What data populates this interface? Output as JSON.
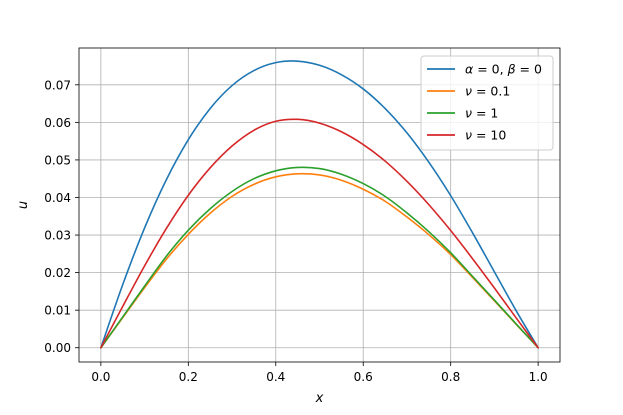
{
  "chart_data": {
    "type": "line",
    "title": "",
    "xlabel": "x",
    "ylabel": "u",
    "xlim": [
      -0.05,
      1.05
    ],
    "ylim": [
      -0.0038,
      0.0798
    ],
    "xticks": [
      0.0,
      0.2,
      0.4,
      0.6,
      0.8,
      1.0
    ],
    "xtick_labels": [
      "0.0",
      "0.2",
      "0.4",
      "0.6",
      "0.8",
      "1.0"
    ],
    "yticks": [
      0.0,
      0.01,
      0.02,
      0.03,
      0.04,
      0.05,
      0.06,
      0.07
    ],
    "ytick_labels": [
      "0.00",
      "0.01",
      "0.02",
      "0.03",
      "0.04",
      "0.05",
      "0.06",
      "0.07"
    ],
    "grid": true,
    "legend_position": "top-right",
    "x": [
      0.0,
      0.05,
      0.1,
      0.15,
      0.2,
      0.25,
      0.3,
      0.35,
      0.4,
      0.45,
      0.5,
      0.55,
      0.6,
      0.65,
      0.7,
      0.75,
      0.8,
      0.85,
      0.9,
      0.95,
      1.0
    ],
    "series": [
      {
        "name": "α = 0, β = 0",
        "legend_parts": [
          {
            "t": "α",
            "i": true
          },
          {
            "t": " = 0, ",
            "i": false
          },
          {
            "t": "β",
            "i": true
          },
          {
            "t": " = 0",
            "i": false
          }
        ],
        "color": "#1f77b4",
        "values": [
          0.0,
          0.0168,
          0.0319,
          0.0448,
          0.0554,
          0.0637,
          0.0698,
          0.0738,
          0.0759,
          0.0763,
          0.0752,
          0.0727,
          0.0689,
          0.0637,
          0.0572,
          0.0494,
          0.0405,
          0.0306,
          0.0202,
          0.0098,
          0.0
        ]
      },
      {
        "name": "ν = 0.1",
        "legend_parts": [
          {
            "t": "ν",
            "i": true
          },
          {
            "t": " = 0.1",
            "i": false
          }
        ],
        "color": "#ff7f0e",
        "values": [
          0.0,
          0.008,
          0.016,
          0.0236,
          0.0302,
          0.0358,
          0.0403,
          0.0435,
          0.0455,
          0.0463,
          0.046,
          0.0446,
          0.0422,
          0.039,
          0.0348,
          0.0301,
          0.0248,
          0.0187,
          0.0125,
          0.0062,
          0.0
        ]
      },
      {
        "name": "ν = 1",
        "legend_parts": [
          {
            "t": "ν",
            "i": true
          },
          {
            "t": " = 1",
            "i": false
          }
        ],
        "color": "#2ca02c",
        "values": [
          0.0,
          0.0082,
          0.0164,
          0.0244,
          0.0313,
          0.037,
          0.0416,
          0.045,
          0.0471,
          0.048,
          0.0477,
          0.0462,
          0.0437,
          0.0403,
          0.0359,
          0.0309,
          0.0253,
          0.019,
          0.0127,
          0.0063,
          0.0
        ]
      },
      {
        "name": "ν = 10",
        "legend_parts": [
          {
            "t": "ν",
            "i": true
          },
          {
            "t": " = 10",
            "i": false
          }
        ],
        "color": "#d62728",
        "values": [
          0.0,
          0.011,
          0.0218,
          0.0318,
          0.0406,
          0.0479,
          0.0537,
          0.0579,
          0.0603,
          0.0608,
          0.0598,
          0.0575,
          0.0541,
          0.0497,
          0.0443,
          0.0381,
          0.0312,
          0.0237,
          0.0159,
          0.0079,
          0.0
        ]
      }
    ]
  }
}
